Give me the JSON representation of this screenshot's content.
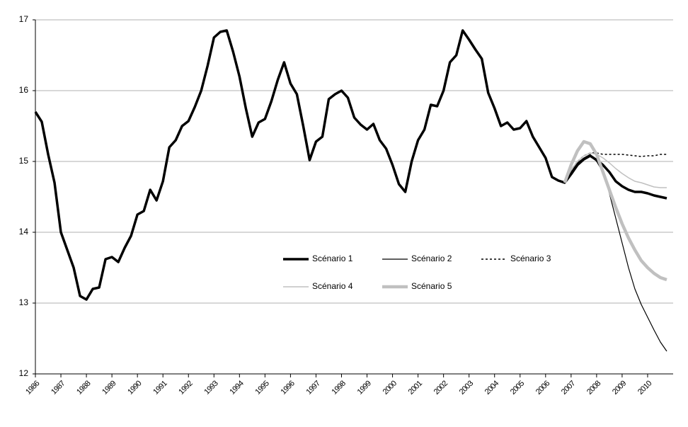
{
  "chart_data": {
    "type": "line",
    "x": [
      1986,
      1986.25,
      1986.5,
      1986.75,
      1987,
      1987.25,
      1987.5,
      1987.75,
      1988,
      1988.25,
      1988.5,
      1988.75,
      1989,
      1989.25,
      1989.5,
      1989.75,
      1990,
      1990.25,
      1990.5,
      1990.75,
      1991,
      1991.25,
      1991.5,
      1991.75,
      1992,
      1992.25,
      1992.5,
      1992.75,
      1993,
      1993.25,
      1993.5,
      1993.75,
      1994,
      1994.25,
      1994.5,
      1994.75,
      1995,
      1995.25,
      1995.5,
      1995.75,
      1996,
      1996.25,
      1996.5,
      1996.75,
      1997,
      1997.25,
      1997.5,
      1997.75,
      1998,
      1998.25,
      1998.5,
      1998.75,
      1999,
      1999.25,
      1999.5,
      1999.75,
      2000,
      2000.25,
      2000.5,
      2000.75,
      2001,
      2001.25,
      2001.5,
      2001.75,
      2002,
      2002.25,
      2002.5,
      2002.75,
      2003,
      2003.25,
      2003.5,
      2003.75,
      2004,
      2004.25,
      2004.5,
      2004.75,
      2005,
      2005.25,
      2005.5,
      2005.75,
      2006,
      2006.25,
      2006.5,
      2006.75,
      2007,
      2007.25,
      2007.5,
      2007.75,
      2008,
      2008.25,
      2008.5,
      2008.75,
      2009,
      2009.25,
      2009.5,
      2009.75,
      2010,
      2010.25,
      2010.5,
      2010.75
    ],
    "series": [
      {
        "name": "Scénario 1",
        "color": "#000000",
        "values": [
          15.7,
          15.56,
          15.1,
          14.7,
          14.0,
          13.75,
          13.5,
          13.1,
          13.05,
          13.2,
          13.22,
          13.62,
          13.65,
          13.58,
          13.78,
          13.95,
          14.25,
          14.3,
          14.6,
          14.45,
          14.72,
          15.2,
          15.3,
          15.5,
          15.57,
          15.77,
          16.0,
          16.35,
          16.75,
          16.83,
          16.85,
          16.55,
          16.2,
          15.75,
          15.35,
          15.55,
          15.6,
          15.85,
          16.15,
          16.4,
          16.1,
          15.95,
          15.5,
          15.02,
          15.28,
          15.35,
          15.88,
          15.95,
          16.0,
          15.9,
          15.62,
          15.52,
          15.45,
          15.53,
          15.3,
          15.18,
          14.95,
          14.68,
          14.57,
          15.0,
          15.3,
          15.45,
          15.8,
          15.78,
          16.0,
          16.4,
          16.5,
          16.85,
          16.72,
          16.58,
          16.45,
          15.97,
          15.75,
          15.5,
          15.55,
          15.45,
          15.47,
          15.57,
          15.35,
          15.2,
          15.05,
          14.78,
          14.73,
          14.7,
          14.82,
          14.95,
          15.03,
          15.08,
          15.02,
          14.95,
          14.85,
          14.72,
          14.65,
          14.6,
          14.57,
          14.57,
          14.55,
          14.52,
          14.5,
          14.48
        ]
      },
      {
        "name": "Scénario 2",
        "color": "#000000",
        "values": [
          null,
          null,
          null,
          null,
          null,
          null,
          null,
          null,
          null,
          null,
          null,
          null,
          null,
          null,
          null,
          null,
          null,
          null,
          null,
          null,
          null,
          null,
          null,
          null,
          null,
          null,
          null,
          null,
          null,
          null,
          null,
          null,
          null,
          null,
          null,
          null,
          null,
          null,
          null,
          null,
          null,
          null,
          null,
          null,
          null,
          null,
          null,
          null,
          null,
          null,
          null,
          null,
          null,
          null,
          null,
          null,
          null,
          null,
          null,
          null,
          null,
          null,
          null,
          null,
          null,
          null,
          null,
          null,
          null,
          null,
          null,
          null,
          null,
          null,
          null,
          null,
          null,
          null,
          null,
          null,
          null,
          null,
          null,
          14.7,
          14.85,
          14.98,
          15.05,
          15.1,
          15.0,
          14.85,
          14.55,
          14.2,
          13.85,
          13.5,
          13.2,
          12.98,
          12.8,
          12.62,
          12.45,
          12.32
        ]
      },
      {
        "name": "Scénario 3",
        "color": "#000000",
        "values": [
          null,
          null,
          null,
          null,
          null,
          null,
          null,
          null,
          null,
          null,
          null,
          null,
          null,
          null,
          null,
          null,
          null,
          null,
          null,
          null,
          null,
          null,
          null,
          null,
          null,
          null,
          null,
          null,
          null,
          null,
          null,
          null,
          null,
          null,
          null,
          null,
          null,
          null,
          null,
          null,
          null,
          null,
          null,
          null,
          null,
          null,
          null,
          null,
          null,
          null,
          null,
          null,
          null,
          null,
          null,
          null,
          null,
          null,
          null,
          null,
          null,
          null,
          null,
          null,
          null,
          null,
          null,
          null,
          null,
          null,
          null,
          null,
          null,
          null,
          null,
          null,
          null,
          null,
          null,
          null,
          null,
          null,
          null,
          14.7,
          14.88,
          15.0,
          15.08,
          15.12,
          15.12,
          15.1,
          15.1,
          15.1,
          15.1,
          15.09,
          15.08,
          15.07,
          15.08,
          15.08,
          15.1,
          15.1
        ]
      },
      {
        "name": "Scénario 4",
        "color": "#c0c0c0",
        "values": [
          null,
          null,
          null,
          null,
          null,
          null,
          null,
          null,
          null,
          null,
          null,
          null,
          null,
          null,
          null,
          null,
          null,
          null,
          null,
          null,
          null,
          null,
          null,
          null,
          null,
          null,
          null,
          null,
          null,
          null,
          null,
          null,
          null,
          null,
          null,
          null,
          null,
          null,
          null,
          null,
          null,
          null,
          null,
          null,
          null,
          null,
          null,
          null,
          null,
          null,
          null,
          null,
          null,
          null,
          null,
          null,
          null,
          null,
          null,
          null,
          null,
          null,
          null,
          null,
          null,
          null,
          null,
          null,
          null,
          null,
          null,
          null,
          null,
          null,
          null,
          null,
          null,
          null,
          null,
          null,
          null,
          null,
          null,
          14.7,
          14.88,
          15.0,
          15.08,
          15.12,
          15.1,
          15.05,
          14.98,
          14.9,
          14.83,
          14.77,
          14.72,
          14.7,
          14.67,
          14.64,
          14.63,
          14.63
        ]
      },
      {
        "name": "Scénario 5",
        "color": "#c0c0c0",
        "values": [
          null,
          null,
          null,
          null,
          null,
          null,
          null,
          null,
          null,
          null,
          null,
          null,
          null,
          null,
          null,
          null,
          null,
          null,
          null,
          null,
          null,
          null,
          null,
          null,
          null,
          null,
          null,
          null,
          null,
          null,
          null,
          null,
          null,
          null,
          null,
          null,
          null,
          null,
          null,
          null,
          null,
          null,
          null,
          null,
          null,
          null,
          null,
          null,
          null,
          null,
          null,
          null,
          null,
          null,
          null,
          null,
          null,
          null,
          null,
          null,
          null,
          null,
          null,
          null,
          null,
          null,
          null,
          null,
          null,
          null,
          null,
          null,
          null,
          null,
          null,
          null,
          null,
          null,
          null,
          null,
          null,
          null,
          null,
          14.7,
          14.95,
          15.15,
          15.28,
          15.25,
          15.1,
          14.85,
          14.6,
          14.35,
          14.12,
          13.92,
          13.75,
          13.6,
          13.5,
          13.42,
          13.36,
          13.33
        ]
      }
    ],
    "xlim": [
      1986,
      2011
    ],
    "xticks": [
      1986,
      1987,
      1988,
      1989,
      1990,
      1991,
      1992,
      1993,
      1994,
      1995,
      1996,
      1997,
      1998,
      1999,
      2000,
      2001,
      2002,
      2003,
      2004,
      2005,
      2006,
      2007,
      2008,
      2009,
      2010
    ],
    "ylim": [
      12,
      17
    ],
    "yticks": [
      12,
      13,
      14,
      15,
      16,
      17
    ],
    "grid": true,
    "legend": "center"
  }
}
